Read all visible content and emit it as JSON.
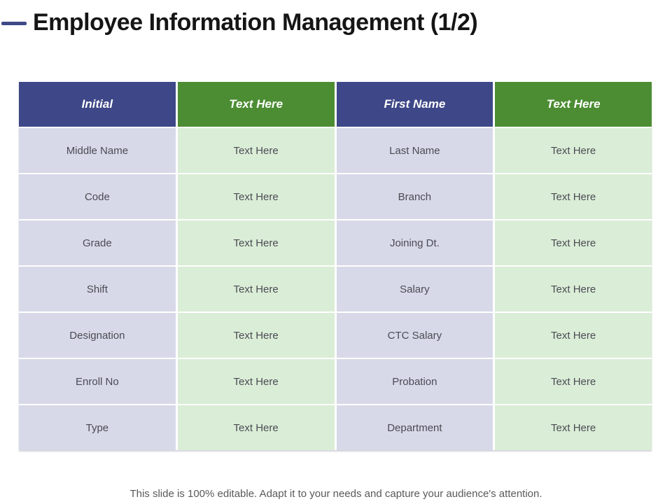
{
  "slide": {
    "title": "Employee Information Management (1/2)",
    "footer": "This slide is 100% editable. Adapt it to your needs and capture your audience's attention."
  },
  "table": {
    "header": [
      "Initial",
      "Text Here",
      "First Name",
      "Text Here"
    ],
    "rows": [
      [
        "Middle Name",
        "Text Here",
        "Last Name",
        "Text Here"
      ],
      [
        "Code",
        "Text Here",
        "Branch",
        "Text Here"
      ],
      [
        "Grade",
        "Text Here",
        "Joining Dt.",
        "Text Here"
      ],
      [
        "Shift",
        "Text Here",
        "Salary",
        "Text Here"
      ],
      [
        "Designation",
        "Text Here",
        "CTC Salary",
        "Text Here"
      ],
      [
        "Enroll No",
        "Text Here",
        "Probation",
        "Text Here"
      ],
      [
        "Type",
        "Text Here",
        "Department",
        "Text Here"
      ]
    ]
  },
  "colors": {
    "header_navy": "#3E4787",
    "header_green": "#4C8D33",
    "cell_lavender": "#D7D9E8",
    "cell_green": "#DAEDD6",
    "accent_dash": "#3F4A87",
    "title_text": "#151515",
    "body_text": "#4B4B55",
    "footer_text": "#595959"
  }
}
